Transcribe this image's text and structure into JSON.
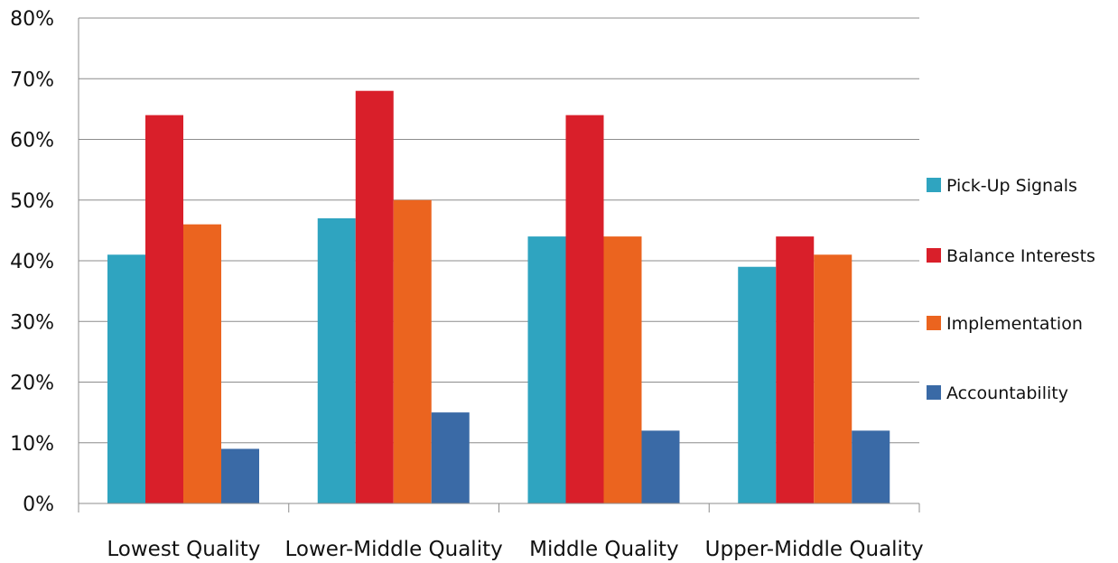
{
  "chart_data": {
    "type": "bar",
    "title": "",
    "xlabel": "",
    "ylabel": "",
    "categories": [
      "Lowest Quality",
      "Lower-Middle Quality",
      "Middle Quality",
      "Upper-Middle Quality"
    ],
    "series": [
      {
        "name": "Pick-Up Signals",
        "color": "#2fa4c0",
        "values": [
          41,
          47,
          44,
          39
        ]
      },
      {
        "name": "Balance Interests",
        "color": "#d91f2a",
        "values": [
          64,
          68,
          64,
          44
        ]
      },
      {
        "name": "Implementation",
        "color": "#eb641f",
        "values": [
          46,
          50,
          44,
          41
        ]
      },
      {
        "name": "Accountability",
        "color": "#3a6aa6",
        "values": [
          9,
          15,
          12,
          12
        ]
      }
    ],
    "ylim": [
      0,
      80
    ],
    "yticks": [
      0,
      10,
      20,
      30,
      40,
      50,
      60,
      70,
      80
    ],
    "ytick_labels": [
      "0%",
      "10%",
      "20%",
      "30%",
      "40%",
      "50%",
      "60%",
      "70%",
      "80%"
    ],
    "grid": true,
    "legend_position": "right"
  }
}
